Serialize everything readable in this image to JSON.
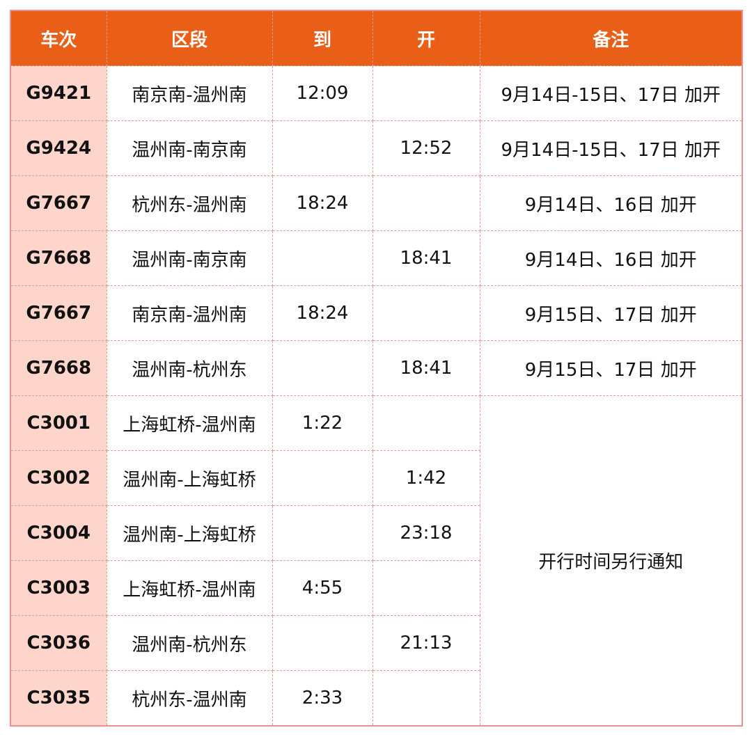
{
  "headers": [
    "车次",
    "区段",
    "到",
    "开",
    "备注"
  ],
  "rows": [
    {
      "train": "G9421",
      "section": "南京南-温州南",
      "arrive": "12:09",
      "depart": "",
      "note": "9月14日-15日、17日 加开"
    },
    {
      "train": "G9424",
      "section": "温州南-南京南",
      "arrive": "",
      "depart": "12:52",
      "note": "9月14日-15日、17日 加开"
    },
    {
      "train": "G7667",
      "section": "杭州东-温州南",
      "arrive": "18:24",
      "depart": "",
      "note": "9月14日、16日 加开"
    },
    {
      "train": "G7668",
      "section": "温州南-南京南",
      "arrive": "",
      "depart": "18:41",
      "note": "9月14日、16日 加开"
    },
    {
      "train": "G7667",
      "section": "南京南-温州南",
      "arrive": "18:24",
      "depart": "",
      "note": "9月15日、17日 加开"
    },
    {
      "train": "G7668",
      "section": "温州南-杭州东",
      "arrive": "",
      "depart": "18:41",
      "note": "9月15日、17日 加开"
    },
    {
      "train": "C3001",
      "section": "上海虹桥-温州南",
      "arrive": "1:22",
      "depart": ""
    },
    {
      "train": "C3002",
      "section": "温州南-上海虹桥",
      "arrive": "",
      "depart": "1:42"
    },
    {
      "train": "C3004",
      "section": "温州南-上海虹桥",
      "arrive": "",
      "depart": "23:18"
    },
    {
      "train": "C3003",
      "section": "上海虹桥-温州南",
      "arrive": "4:55",
      "depart": ""
    },
    {
      "train": "C3036",
      "section": "温州南-杭州东",
      "arrive": "",
      "depart": "21:13"
    },
    {
      "train": "C3035",
      "section": "杭州东-温州南",
      "arrive": "2:33",
      "depart": ""
    }
  ],
  "merged_note": "开行时间另行通知",
  "colors": {
    "header": "#e95f18",
    "train_col": "#fdd5cb",
    "border": "#e79a9a"
  }
}
